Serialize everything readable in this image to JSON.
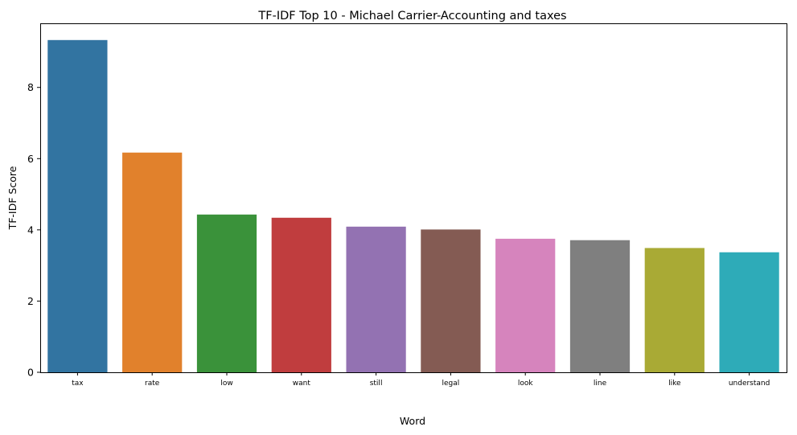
{
  "chart_data": {
    "type": "bar",
    "title": "TF-IDF Top 10 - Michael Carrier-Accounting and taxes",
    "xlabel": "Word",
    "ylabel": "TF-IDF Score",
    "categories": [
      "tax",
      "rate",
      "low",
      "want",
      "still",
      "legal",
      "look",
      "line",
      "like",
      "understand"
    ],
    "values": [
      9.33,
      6.17,
      4.43,
      4.34,
      4.09,
      4.01,
      3.75,
      3.71,
      3.49,
      3.37
    ],
    "colors": [
      "#3274a1",
      "#e1812c",
      "#3a923a",
      "#c03d3e",
      "#9372b2",
      "#845b53",
      "#d684bd",
      "#7f7f7f",
      "#a9aa35",
      "#2eabb8"
    ],
    "ylim": [
      0,
      9.8
    ],
    "yticks": [
      0,
      2,
      4,
      6,
      8
    ],
    "grid": false,
    "legend": "none"
  }
}
